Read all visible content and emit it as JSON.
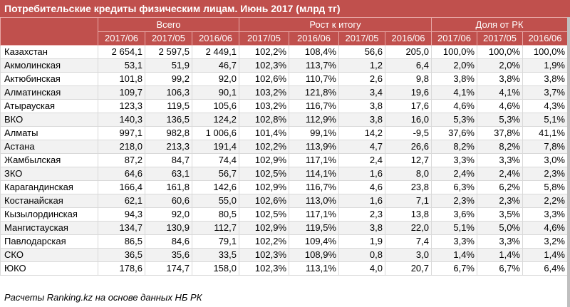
{
  "title": "Потребительские кредиты физическим лицам. Июнь 2017 (млрд тг)",
  "groups": [
    "Всего",
    "Рост к итогу",
    "Доля от РК"
  ],
  "subheaders": [
    "2017/06",
    "2017/05",
    "2016/06",
    "2017/05",
    "2016/06",
    "2017/05",
    "2016/06",
    "2017/06",
    "2017/05",
    "2016/06"
  ],
  "rows": [
    [
      "Казахстан",
      "2 654,1",
      "2 597,5",
      "2 449,1",
      "102,2%",
      "108,4%",
      "56,6",
      "205,0",
      "100,0%",
      "100,0%",
      "100,0%"
    ],
    [
      "Акмолинская",
      "53,1",
      "51,9",
      "46,7",
      "102,3%",
      "113,7%",
      "1,2",
      "6,4",
      "2,0%",
      "2,0%",
      "1,9%"
    ],
    [
      "Актюбинская",
      "101,8",
      "99,2",
      "92,0",
      "102,6%",
      "110,7%",
      "2,6",
      "9,8",
      "3,8%",
      "3,8%",
      "3,8%"
    ],
    [
      "Алматинская",
      "109,7",
      "106,3",
      "90,1",
      "103,2%",
      "121,8%",
      "3,4",
      "19,6",
      "4,1%",
      "4,1%",
      "3,7%"
    ],
    [
      "Атырауская",
      "123,3",
      "119,5",
      "105,6",
      "103,2%",
      "116,7%",
      "3,8",
      "17,6",
      "4,6%",
      "4,6%",
      "4,3%"
    ],
    [
      "ВКО",
      "140,3",
      "136,5",
      "124,2",
      "102,8%",
      "112,9%",
      "3,8",
      "16,0",
      "5,3%",
      "5,3%",
      "5,1%"
    ],
    [
      "Алматы",
      "997,1",
      "982,8",
      "1 006,6",
      "101,4%",
      "99,1%",
      "14,2",
      "-9,5",
      "37,6%",
      "37,8%",
      "41,1%"
    ],
    [
      "Астана",
      "218,0",
      "213,3",
      "191,4",
      "102,2%",
      "113,9%",
      "4,7",
      "26,6",
      "8,2%",
      "8,2%",
      "7,8%"
    ],
    [
      "Жамбылская",
      "87,2",
      "84,7",
      "74,4",
      "102,9%",
      "117,1%",
      "2,4",
      "12,7",
      "3,3%",
      "3,3%",
      "3,0%"
    ],
    [
      "ЗКО",
      "64,6",
      "63,1",
      "56,7",
      "102,5%",
      "114,1%",
      "1,6",
      "8,0",
      "2,4%",
      "2,4%",
      "2,3%"
    ],
    [
      "Карагандинская",
      "166,4",
      "161,8",
      "142,6",
      "102,9%",
      "116,7%",
      "4,6",
      "23,8",
      "6,3%",
      "6,2%",
      "5,8%"
    ],
    [
      "Костанайская",
      "62,1",
      "60,6",
      "55,0",
      "102,6%",
      "113,0%",
      "1,6",
      "7,1",
      "2,3%",
      "2,3%",
      "2,2%"
    ],
    [
      "Кызылординская",
      "94,3",
      "92,0",
      "80,5",
      "102,5%",
      "117,1%",
      "2,3",
      "13,8",
      "3,6%",
      "3,5%",
      "3,3%"
    ],
    [
      "Мангистауская",
      "134,7",
      "130,9",
      "112,7",
      "102,9%",
      "119,5%",
      "3,8",
      "22,0",
      "5,1%",
      "5,0%",
      "4,6%"
    ],
    [
      "Павлодарская",
      "86,5",
      "84,6",
      "79,1",
      "102,2%",
      "109,4%",
      "1,9",
      "7,4",
      "3,3%",
      "3,3%",
      "3,2%"
    ],
    [
      "СКО",
      "36,5",
      "35,6",
      "33,5",
      "102,3%",
      "108,9%",
      "0,8",
      "3,0",
      "1,4%",
      "1,4%",
      "1,4%"
    ],
    [
      "ЮКО",
      "178,6",
      "174,7",
      "158,0",
      "102,3%",
      "113,1%",
      "4,0",
      "20,7",
      "6,7%",
      "6,7%",
      "6,4%"
    ]
  ],
  "footnote": "Расчеты Ranking.kz на основе данных НБ РК",
  "colors": {
    "header_bg": "#c0504d",
    "header_text": "#ffffff",
    "row_alt_bg": "#f2f2f2",
    "grid_line": "#d9d9d9"
  }
}
